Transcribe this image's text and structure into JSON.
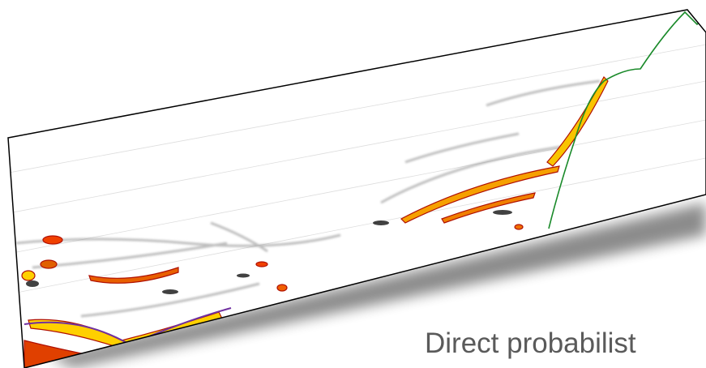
{
  "caption": "Direct probabilist"
}
